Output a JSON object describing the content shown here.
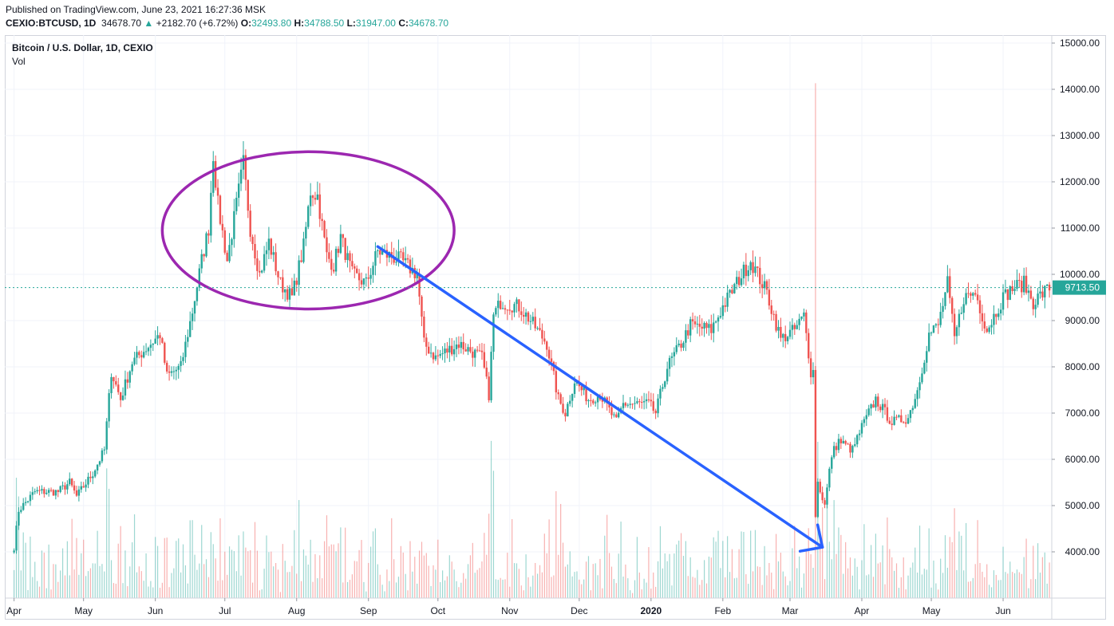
{
  "header": {
    "published": "Published on TradingView.com, June 23, 2021 16:27:36 MSK",
    "symbol": "CEXIO:BTCUSD, 1D",
    "last": "34678.70",
    "change": "+2182.70 (+6.72%)",
    "o_label": "O:",
    "o": "32493.80",
    "h_label": "H:",
    "h": "34788.50",
    "l_label": "L:",
    "l": "31947.00",
    "c_label": "C:",
    "c": "34678.70"
  },
  "legend": {
    "title": "Bitcoin / U.S. Dollar, 1D, CEXIO",
    "volume": "Vol"
  },
  "colors": {
    "up": "#26a69a",
    "down": "#ef5350",
    "arrow": "#2962ff",
    "circle": "#9c27b0",
    "grid": "#f0f3fa"
  },
  "chart_data": {
    "type": "candlestick",
    "title": "Bitcoin / U.S. Dollar, 1D, CEXIO",
    "y_ticks": [
      "15000.00",
      "14000.00",
      "13000.00",
      "12000.00",
      "11000.00",
      "10000.00",
      "9000.00",
      "8000.00",
      "7000.00",
      "6000.00",
      "5000.00",
      "4000.00"
    ],
    "ylim": [
      3000,
      15500
    ],
    "x_ticks": [
      "Apr",
      "May",
      "Jun",
      "Jul",
      "Aug",
      "Sep",
      "Oct",
      "Nov",
      "Dec",
      "2020",
      "Feb",
      "Mar",
      "Apr",
      "May",
      "Jun"
    ],
    "last_price_label": "9713.50",
    "last_price": 9713.5,
    "anchors": [
      [
        "2019-04-01",
        4100
      ],
      [
        "2019-04-03",
        4900
      ],
      [
        "2019-04-10",
        5300
      ],
      [
        "2019-04-20",
        5300
      ],
      [
        "2019-04-25",
        5500
      ],
      [
        "2019-04-28",
        5200
      ],
      [
        "2019-05-05",
        5700
      ],
      [
        "2019-05-10",
        6200
      ],
      [
        "2019-05-13",
        7900
      ],
      [
        "2019-05-17",
        7300
      ],
      [
        "2019-05-22",
        8100
      ],
      [
        "2019-05-30",
        8500
      ],
      [
        "2019-06-03",
        8700
      ],
      [
        "2019-06-06",
        7800
      ],
      [
        "2019-06-12",
        8000
      ],
      [
        "2019-06-17",
        9200
      ],
      [
        "2019-06-21",
        10300
      ],
      [
        "2019-06-24",
        11000
      ],
      [
        "2019-06-26",
        12600
      ],
      [
        "2019-06-28",
        11500
      ],
      [
        "2019-07-02",
        10300
      ],
      [
        "2019-07-09",
        12400
      ],
      [
        "2019-07-12",
        11000
      ],
      [
        "2019-07-16",
        10000
      ],
      [
        "2019-07-20",
        10700
      ],
      [
        "2019-07-25",
        9800
      ],
      [
        "2019-07-30",
        9500
      ],
      [
        "2019-08-04",
        10600
      ],
      [
        "2019-08-07",
        11800
      ],
      [
        "2019-08-10",
        11700
      ],
      [
        "2019-08-14",
        10400
      ],
      [
        "2019-08-17",
        10200
      ],
      [
        "2019-08-20",
        10800
      ],
      [
        "2019-08-25",
        10000
      ],
      [
        "2019-08-31",
        9800
      ],
      [
        "2019-09-05",
        10500
      ],
      [
        "2019-09-15",
        10300
      ],
      [
        "2019-09-22",
        10000
      ],
      [
        "2019-09-25",
        8500
      ],
      [
        "2019-09-30",
        8200
      ],
      [
        "2019-10-10",
        8500
      ],
      [
        "2019-10-20",
        8200
      ],
      [
        "2019-10-23",
        7400
      ],
      [
        "2019-10-25",
        9100
      ],
      [
        "2019-10-28",
        9400
      ],
      [
        "2019-11-05",
        9300
      ],
      [
        "2019-11-10",
        9000
      ],
      [
        "2019-11-17",
        8500
      ],
      [
        "2019-11-22",
        7300
      ],
      [
        "2019-11-25",
        7000
      ],
      [
        "2019-11-29",
        7700
      ],
      [
        "2019-12-05",
        7300
      ],
      [
        "2019-12-10",
        7400
      ],
      [
        "2019-12-17",
        6800
      ],
      [
        "2019-12-20",
        7200
      ],
      [
        "2019-12-31",
        7200
      ],
      [
        "2020-01-03",
        7000
      ],
      [
        "2020-01-08",
        8000
      ],
      [
        "2020-01-14",
        8500
      ],
      [
        "2020-01-18",
        8900
      ],
      [
        "2020-01-27",
        8800
      ],
      [
        "2020-02-01",
        9300
      ],
      [
        "2020-02-08",
        9900
      ],
      [
        "2020-02-13",
        10300
      ],
      [
        "2020-02-18",
        9800
      ],
      [
        "2020-02-20",
        9600
      ],
      [
        "2020-02-26",
        8600
      ],
      [
        "2020-03-03",
        8800
      ],
      [
        "2020-03-07",
        9100
      ],
      [
        "2020-03-10",
        7900
      ],
      [
        "2020-03-11",
        7900
      ],
      [
        "2020-03-12",
        4800
      ],
      [
        "2020-03-13",
        5500
      ],
      [
        "2020-03-16",
        5000
      ],
      [
        "2020-03-19",
        6100
      ],
      [
        "2020-03-22",
        6400
      ],
      [
        "2020-03-28",
        6200
      ],
      [
        "2020-04-01",
        6700
      ],
      [
        "2020-04-07",
        7300
      ],
      [
        "2020-04-14",
        6800
      ],
      [
        "2020-04-21",
        6900
      ],
      [
        "2020-04-25",
        7500
      ],
      [
        "2020-04-30",
        8700
      ],
      [
        "2020-05-04",
        8900
      ],
      [
        "2020-05-08",
        9800
      ],
      [
        "2020-05-11",
        8600
      ],
      [
        "2020-05-15",
        9500
      ],
      [
        "2020-05-20",
        9600
      ],
      [
        "2020-05-25",
        8800
      ],
      [
        "2020-06-01",
        9500
      ],
      [
        "2020-06-05",
        9700
      ],
      [
        "2020-06-10",
        9800
      ],
      [
        "2020-06-14",
        9400
      ],
      [
        "2020-06-16",
        9500
      ],
      [
        "2020-06-21",
        9713.5
      ]
    ],
    "annotations": [
      {
        "type": "ellipse",
        "label": "",
        "center": [
          "2019-08-06",
          10950
        ],
        "radius_days": 21,
        "radius_price": 1700
      },
      {
        "type": "arrow",
        "label": "",
        "from": [
          "2019-09-05",
          10600
        ],
        "to": [
          "2020-03-15",
          4100
        ]
      }
    ]
  }
}
